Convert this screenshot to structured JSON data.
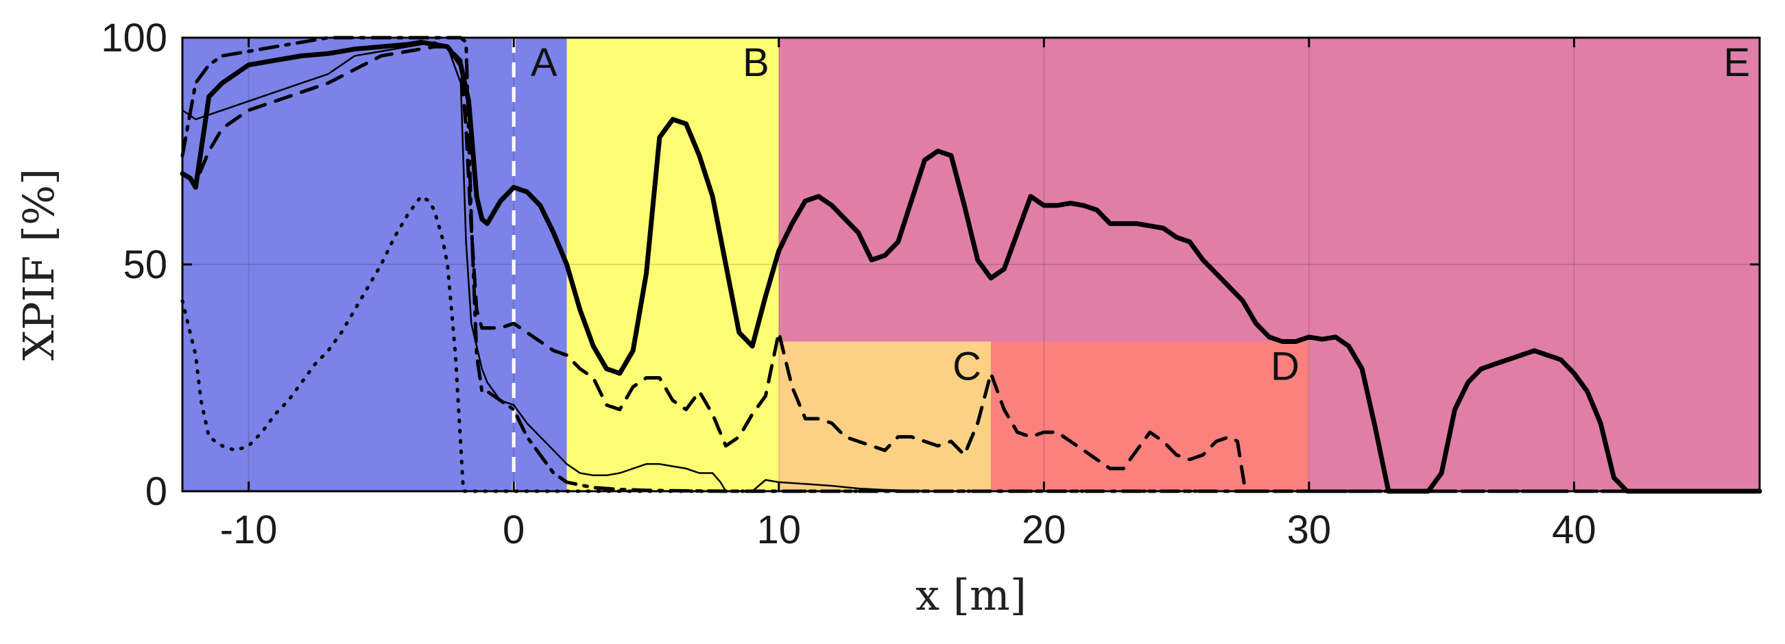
{
  "chart_data": {
    "type": "line",
    "xlabel": "x [m]",
    "ylabel": "XPIF [%]",
    "xlim": [
      -12.5,
      47
    ],
    "ylim": [
      0,
      100
    ],
    "xticks": [
      -10,
      0,
      10,
      20,
      30,
      40
    ],
    "yticks": [
      0,
      50,
      100
    ],
    "grid": true,
    "colors": {
      "region_A": "#7b82e8",
      "region_B": "#fdfd73",
      "region_C": "#fcd184",
      "region_D": "#fb817e",
      "region_E": "#e07ea8"
    },
    "regions": [
      {
        "label": "A",
        "x": [
          -12.5,
          2
        ],
        "y": [
          0,
          100
        ],
        "color": "#7b82e8"
      },
      {
        "label": "B",
        "x": [
          2,
          10
        ],
        "y": [
          0,
          100
        ],
        "color": "#fdfd73"
      },
      {
        "label": "E",
        "x": [
          10,
          47
        ],
        "y": [
          33,
          100
        ],
        "color": "#e07ea8"
      },
      {
        "label": "C",
        "x": [
          10,
          18
        ],
        "y": [
          0,
          33
        ],
        "color": "#fcd184"
      },
      {
        "label": "D",
        "x": [
          18,
          30
        ],
        "y": [
          0,
          33
        ],
        "color": "#fb817e"
      },
      {
        "label": "",
        "x": [
          30,
          47
        ],
        "y": [
          0,
          33
        ],
        "color": "#e07ea8"
      }
    ],
    "vline": {
      "x": 0,
      "style": "dashed",
      "color": "#ffffff"
    },
    "series": [
      {
        "style": "thick-solid",
        "x": [
          -12.5,
          -12.2,
          -12,
          -11.5,
          -11,
          -10,
          -9,
          -8,
          -7,
          -6,
          -5,
          -4,
          -3.5,
          -3,
          -2.5,
          -2,
          -1.7,
          -1.4,
          -1.2,
          -1,
          -0.5,
          0,
          0.5,
          1,
          1.5,
          2,
          2.5,
          3,
          3.5,
          4,
          4.5,
          5,
          5.5,
          6,
          6.5,
          7,
          7.5,
          8,
          8.5,
          9,
          9.5,
          10,
          10.5,
          11,
          11.5,
          12,
          12.5,
          13,
          13.5,
          14,
          14.5,
          15,
          15.5,
          16,
          16.5,
          17,
          17.5,
          18,
          18.5,
          19,
          19.5,
          20,
          20.5,
          21,
          21.5,
          22,
          22.5,
          23,
          23.5,
          24,
          24.5,
          25,
          25.5,
          26,
          26.5,
          27,
          27.5,
          28,
          28.5,
          29,
          29.5,
          30,
          30.5,
          31,
          31.5,
          32,
          32.5,
          33,
          33.5,
          34,
          34.5,
          35,
          35.5,
          36,
          36.5,
          37,
          37.5,
          38,
          38.5,
          39,
          39.5,
          40,
          40.5,
          41,
          41.5,
          42,
          42.5,
          43,
          47
        ],
        "y": [
          70,
          69,
          67,
          87,
          90,
          94,
          95,
          96,
          96.5,
          97.5,
          98,
          98.5,
          99,
          98.5,
          98,
          94,
          86,
          65,
          60,
          59,
          64,
          67,
          66,
          63,
          57,
          50,
          40,
          32,
          27,
          26,
          31,
          48,
          78,
          82,
          81,
          74,
          65,
          50,
          35,
          32,
          43,
          53,
          59,
          64,
          65,
          63,
          60,
          57,
          51,
          52,
          55,
          64,
          73,
          75,
          74,
          63,
          51,
          47,
          49,
          57,
          65,
          63,
          63,
          63.5,
          63,
          62,
          59,
          59,
          59,
          58.5,
          58,
          56,
          55,
          51,
          48,
          45,
          42,
          37,
          34,
          33,
          33,
          34,
          33.5,
          34,
          32,
          27,
          14,
          0,
          0,
          0,
          0,
          4,
          18,
          24,
          27,
          28,
          29,
          30,
          31,
          30,
          29,
          26,
          22,
          15,
          3,
          0,
          0,
          0,
          0
        ]
      },
      {
        "style": "dashed",
        "x": [
          -12.5,
          -12,
          -11.5,
          -11,
          -10,
          -9,
          -8,
          -7,
          -6,
          -5,
          -4,
          -3,
          -2.5,
          -2,
          -1.8,
          -1.6,
          -1.4,
          -1.2,
          -1,
          -0.5,
          0,
          0.5,
          1,
          1.5,
          2,
          2.5,
          3,
          3.5,
          4,
          4.5,
          5,
          5.5,
          6,
          6.5,
          7,
          7.5,
          8,
          8.5,
          9,
          9.5,
          10,
          10.5,
          11,
          11.5,
          12,
          12.5,
          13,
          13.5,
          14,
          14.5,
          15,
          15.5,
          16,
          16.5,
          17,
          17.5,
          18,
          18.5,
          19,
          19.5,
          20,
          20.5,
          21,
          21.5,
          22,
          22.5,
          23,
          23.5,
          24,
          24.5,
          25,
          25.5,
          26,
          26.5,
          27,
          27.3,
          27.6,
          47
        ],
        "y": [
          70,
          68,
          75,
          80,
          84,
          86,
          88,
          90,
          93,
          96,
          97,
          98,
          98,
          95,
          80,
          58,
          40,
          36,
          36,
          36,
          37,
          35,
          33,
          31,
          30,
          27,
          25,
          19,
          18,
          23,
          25,
          25,
          20,
          18,
          22,
          17,
          10,
          12,
          17,
          21,
          35,
          23,
          16,
          16,
          15,
          12,
          11,
          10,
          9,
          12,
          12,
          11,
          10,
          11,
          8,
          15,
          26,
          18,
          13,
          12,
          13,
          13,
          11,
          9,
          7,
          5,
          5,
          9,
          13,
          11,
          8,
          7,
          8,
          11,
          12,
          11,
          0,
          0
        ]
      },
      {
        "style": "dash-dot",
        "x": [
          -12.5,
          -12,
          -11.5,
          -11,
          -10,
          -9,
          -8,
          -7,
          -6,
          -5,
          -4,
          -3,
          -2.5,
          -2,
          -1.8,
          -1.6,
          -1.4,
          -1.2,
          -1,
          -0.5,
          0,
          0.5,
          1,
          1.5,
          2,
          3,
          4,
          5,
          6,
          8,
          10,
          47
        ],
        "y": [
          74,
          90,
          94,
          96,
          97,
          98,
          99,
          100,
          100,
          100,
          100,
          100,
          100,
          100,
          99,
          60,
          30,
          22,
          22,
          20,
          18,
          12,
          8,
          4,
          2,
          0.8,
          0.4,
          0.2,
          0.1,
          0,
          0,
          0
        ]
      },
      {
        "style": "thin-solid",
        "x": [
          -12.5,
          -12,
          -11,
          -10,
          -9,
          -8,
          -7,
          -6,
          -5,
          -4,
          -3,
          -2.5,
          -2,
          -1.8,
          -1.6,
          -1.4,
          -1.2,
          -1,
          -0.5,
          0,
          0.5,
          1,
          1.5,
          2,
          2.5,
          3,
          3.5,
          4,
          4.5,
          5,
          5.5,
          6,
          6.5,
          7,
          7.5,
          7.8,
          8,
          8.3,
          8.7,
          9,
          9.5,
          10,
          11,
          12,
          13,
          14,
          15,
          16,
          47
        ],
        "y": [
          84,
          82,
          84,
          86,
          88,
          90,
          92,
          96,
          97,
          98,
          99,
          98,
          90,
          55,
          37,
          32,
          27,
          24,
          20,
          19,
          15,
          12,
          9,
          6,
          4,
          3.5,
          3.5,
          4,
          5,
          6,
          6,
          5.5,
          5,
          4,
          4,
          2,
          0,
          0,
          0,
          0,
          2.5,
          2,
          1.6,
          1.2,
          0.6,
          0.3,
          0.1,
          0,
          0
        ]
      },
      {
        "style": "dotted",
        "x": [
          -12.5,
          -12,
          -11.8,
          -11.5,
          -11,
          -10.5,
          -10,
          -9.5,
          -9,
          -8.5,
          -8,
          -7.5,
          -7,
          -6.5,
          -6,
          -5.5,
          -5,
          -4.5,
          -4,
          -3.5,
          -3.2,
          -3,
          -2.7,
          -2.5,
          -2.2,
          -2,
          -1.9,
          -1.7,
          47
        ],
        "y": [
          42,
          30,
          20,
          12,
          10,
          9,
          10,
          13,
          17,
          20,
          24,
          28,
          31,
          35,
          40,
          45,
          50,
          56,
          61,
          65,
          64,
          62,
          56,
          50,
          30,
          10,
          0,
          0,
          0
        ]
      }
    ]
  }
}
